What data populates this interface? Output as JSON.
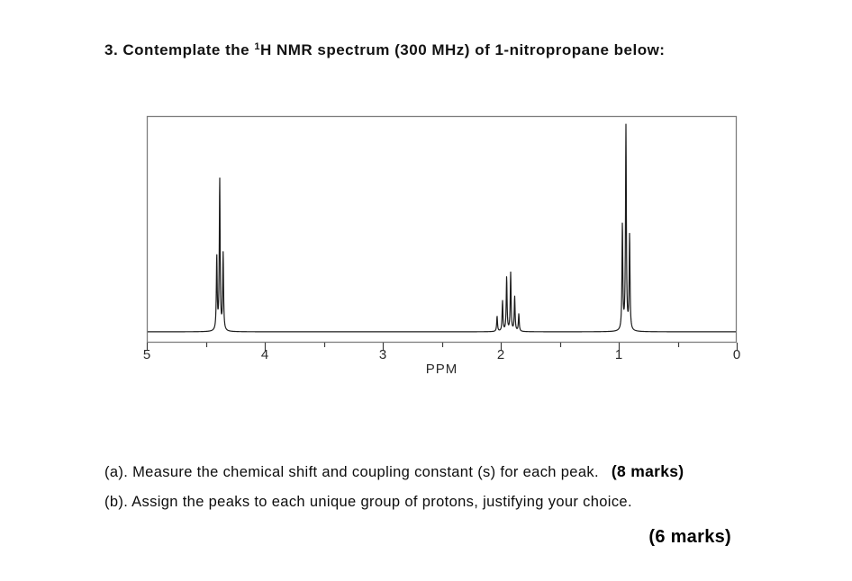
{
  "title": {
    "part1": "3. Contemplate the ",
    "isotope": "1",
    "part2": "H NMR spectrum (300 MHz) of 1-nitropropane below:"
  },
  "chart_data": {
    "type": "line",
    "description": "1H NMR spectrum (300 MHz) of 1-nitropropane",
    "xlabel": "PPM",
    "x_max": 5,
    "x_min": 0,
    "x_reversed": true,
    "major_ticks": [
      5,
      4,
      3,
      2,
      1,
      0
    ],
    "minor_ticks": [
      4.5,
      3.5,
      2.5,
      1.5,
      0.5
    ],
    "ylim": [
      0,
      1
    ],
    "grid": false,
    "line_color": "#1c1c1c",
    "border_color": "#7d7d7d",
    "tick_color": "#3d3d3d",
    "baseline_y_frac": 0.952,
    "peaks": [
      {
        "center_ppm": 4.38,
        "multiplicity": "triplet",
        "lines": [
          {
            "ppm": 4.407,
            "height": 0.34
          },
          {
            "ppm": 4.382,
            "height": 0.7
          },
          {
            "ppm": 4.353,
            "height": 0.355
          }
        ]
      },
      {
        "center_ppm": 1.94,
        "multiplicity": "sextet",
        "lines": [
          {
            "ppm": 2.031,
            "height": 0.07
          },
          {
            "ppm": 1.985,
            "height": 0.14
          },
          {
            "ppm": 1.95,
            "height": 0.25
          },
          {
            "ppm": 1.916,
            "height": 0.27
          },
          {
            "ppm": 1.882,
            "height": 0.16
          },
          {
            "ppm": 1.847,
            "height": 0.08
          }
        ]
      },
      {
        "center_ppm": 0.94,
        "multiplicity": "triplet",
        "lines": [
          {
            "ppm": 0.969,
            "height": 0.49
          },
          {
            "ppm": 0.939,
            "height": 0.945
          },
          {
            "ppm": 0.908,
            "height": 0.44
          }
        ]
      }
    ]
  },
  "questions": {
    "a": {
      "text": "(a). Measure the chemical shift and coupling constant (s) for each peak.",
      "marks": "(8 marks)"
    },
    "b": {
      "text": "(b). Assign the peaks to each unique group of protons, justifying your choice.",
      "marks": "(6 marks)"
    }
  }
}
